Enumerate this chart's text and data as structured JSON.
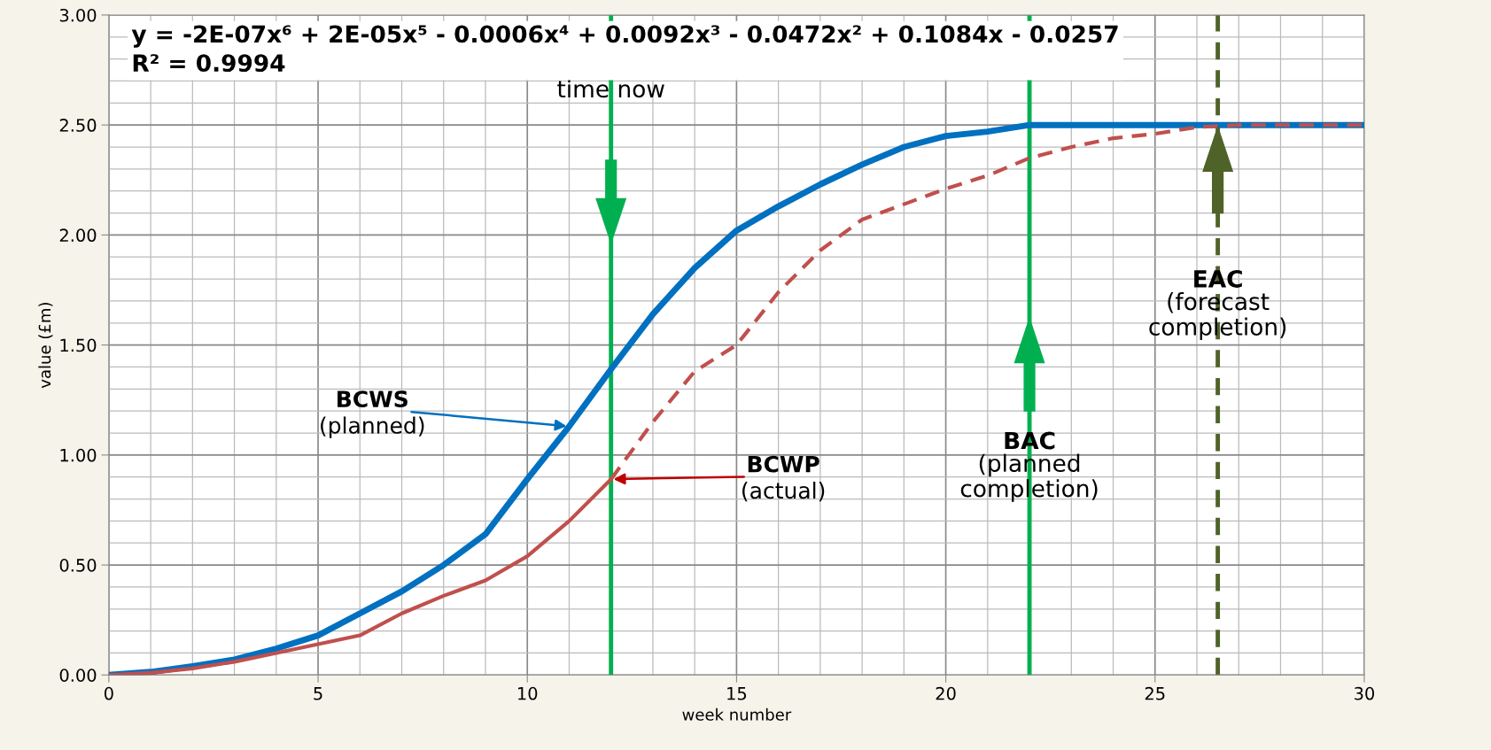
{
  "chart_data": {
    "type": "line",
    "xlabel": "week number",
    "ylabel": "value (£m)",
    "xlim": [
      0,
      30
    ],
    "xticks": [
      0,
      5,
      10,
      15,
      20,
      25,
      30
    ],
    "ylim": [
      0,
      3
    ],
    "yticks": [
      {
        "value": 0,
        "label": "0.00"
      },
      {
        "value": 0.5,
        "label": "0.50"
      },
      {
        "value": 1,
        "label": "1.00"
      },
      {
        "value": 1.5,
        "label": "1.50"
      },
      {
        "value": 2,
        "label": "2.00"
      },
      {
        "value": 2.5,
        "label": "2.50"
      },
      {
        "value": 3,
        "label": "3.00"
      }
    ],
    "grid": true,
    "marker": "none",
    "series": [
      {
        "color": "#0070c0",
        "line_style": "solid",
        "x": [
          0,
          1,
          2,
          3,
          4,
          5,
          6,
          7,
          8,
          9,
          10,
          11,
          12,
          13,
          14,
          15,
          16,
          17,
          18,
          19,
          20,
          21,
          22,
          23,
          24,
          25,
          26,
          27,
          28,
          29,
          30
        ],
        "values": [
          0,
          0.014,
          0.04,
          0.07,
          0.12,
          0.18,
          0.28,
          0.38,
          0.5,
          0.64,
          0.89,
          1.13,
          1.39,
          1.64,
          1.85,
          2.02,
          2.13,
          2.23,
          2.32,
          2.4,
          2.45,
          2.47,
          2.5,
          2.5,
          2.5,
          2.5,
          2.5,
          2.5,
          2.5,
          2.5,
          2.5
        ]
      },
      {
        "color": "#c0504d",
        "line_style": "solid",
        "x": [
          0,
          1,
          2,
          3,
          4,
          5,
          6,
          7,
          8,
          9,
          10,
          11,
          12
        ],
        "values": [
          0,
          0.01,
          0.03,
          0.06,
          0.1,
          0.14,
          0.18,
          0.28,
          0.36,
          0.43,
          0.54,
          0.7,
          0.89
        ]
      },
      {
        "color": "#c0504d",
        "line_style": "dashed",
        "x": [
          12,
          13,
          14,
          15,
          16,
          17,
          18,
          19,
          20,
          21,
          22,
          23,
          24,
          25,
          26,
          27,
          28,
          29,
          30
        ],
        "values": [
          0.89,
          1.15,
          1.38,
          1.5,
          1.74,
          1.93,
          2.07,
          2.14,
          2.21,
          2.27,
          2.35,
          2.4,
          2.44,
          2.46,
          2.49,
          2.5,
          2.5,
          2.5,
          2.5
        ]
      }
    ],
    "ref_lines": [
      {
        "axis": "x",
        "value": 12,
        "label": "time now",
        "color": "#00b050",
        "line_style": "solid"
      },
      {
        "axis": "x",
        "value": 22,
        "label": "BAC\n(planned\ncompletion)",
        "color": "#00b050",
        "line_style": "solid"
      },
      {
        "axis": "x",
        "value": 26.5,
        "label": "EAC\n(forecast\ncompletion)",
        "color": "#4f6228",
        "line_style": "dashed"
      }
    ],
    "annotations": [
      "y = -2E-07x⁶ + 2E-05x⁵ - 0.0006x⁴ + 0.0092x³ - 0.0472x² + 0.1084x - 0.0257\nR² = 0.9994",
      {
        "text": "BCWS\n(planned)",
        "x": 11,
        "y": 1.13
      },
      {
        "text": "BCWP\n(actual)",
        "x": 12,
        "y": 0.89
      }
    ]
  }
}
